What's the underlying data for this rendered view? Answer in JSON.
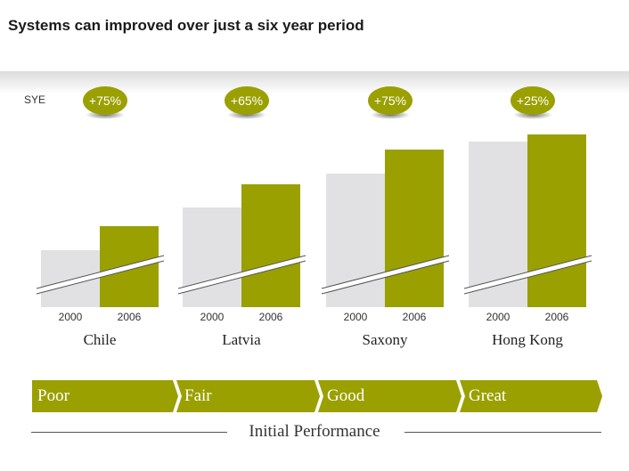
{
  "title": "Systems can improved over just a six year period",
  "ylabel": "SYE",
  "colors": {
    "base_bar": "#e1e1e3",
    "later_bar": "#9aa000",
    "badge": "#9aa000"
  },
  "chart_data": {
    "type": "bar",
    "ylabel": "SYE",
    "axis_break": true,
    "groups": [
      {
        "name": "Chile",
        "change_label": "+75%",
        "years": [
          "2000",
          "2006"
        ],
        "values": [
          64,
          91
        ]
      },
      {
        "name": "Latvia",
        "change_label": "+65%",
        "years": [
          "2000",
          "2006"
        ],
        "values": [
          112,
          138
        ]
      },
      {
        "name": "Saxony",
        "change_label": "+75%",
        "years": [
          "2000",
          "2006"
        ],
        "values": [
          150,
          177
        ]
      },
      {
        "name": "Hong Kong",
        "change_label": "+25%",
        "years": [
          "2000",
          "2006"
        ],
        "values": [
          186,
          194
        ]
      }
    ]
  },
  "performance_scale": {
    "stages": [
      "Poor",
      "Fair",
      "Good",
      "Great"
    ],
    "label": "Initial Performance"
  }
}
